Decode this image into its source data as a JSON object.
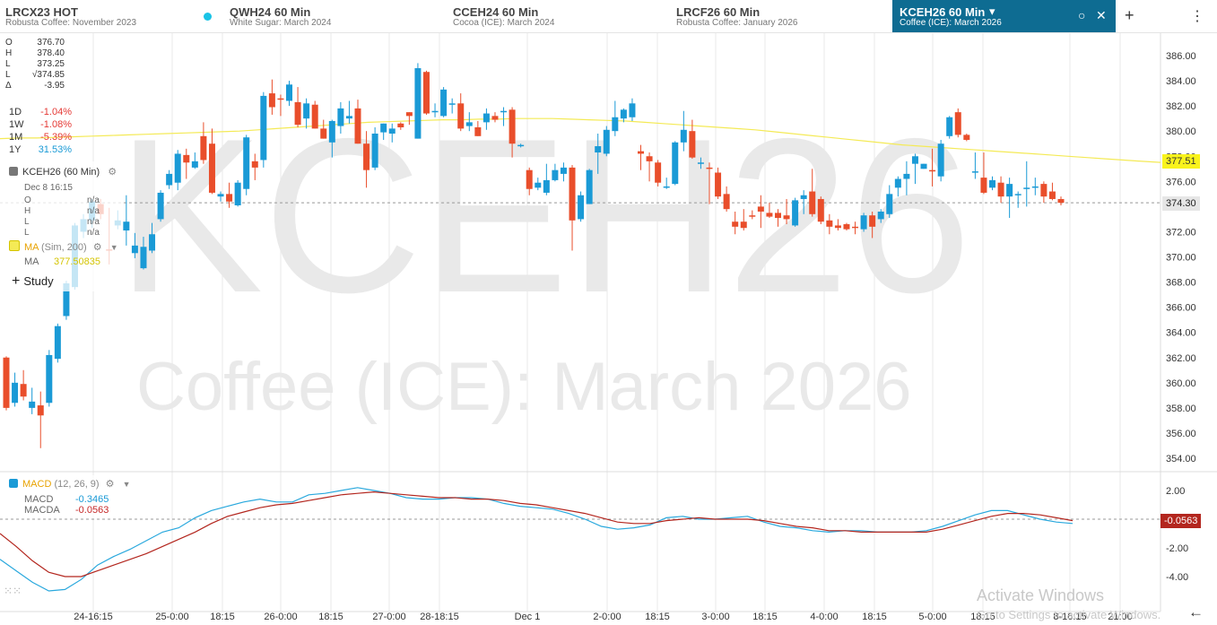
{
  "tabs": [
    {
      "symbol": "LRCX23 HOT",
      "name": "Robusta Coffee: November 2023"
    },
    {
      "symbol": "QWH24 60 Min",
      "name": "White Sugar: March 2024"
    },
    {
      "symbol": "CCEH24 60 Min",
      "name": "Cocoa (ICE): March 2024"
    },
    {
      "symbol": "LRCF26 60 Min",
      "name": "Robusta Coffee: January 2026"
    },
    {
      "symbol": "KCEH26 60 Min",
      "name": "Coffee (ICE): March 2026"
    }
  ],
  "tab_icons": {
    "dropdown": "▾",
    "radio": "○",
    "close": "✕",
    "add": "+",
    "menu": "⋮"
  },
  "watermark": {
    "symbol": "KCEH26",
    "name": "Coffee (ICE): March 2026"
  },
  "ohlc_panel": [
    {
      "k": "O",
      "v": "376.70"
    },
    {
      "k": "H",
      "v": "378.40"
    },
    {
      "k": "L",
      "v": "373.25"
    },
    {
      "k": "L",
      "v": "√374.85"
    },
    {
      "k": "Δ",
      "v": "-3.95"
    }
  ],
  "performance": [
    {
      "k": "1D",
      "v": "-1.04%",
      "color": "#e53935"
    },
    {
      "k": "1W",
      "v": "-1.08%",
      "color": "#e53935"
    },
    {
      "k": "1M",
      "v": "-5.39%",
      "color": "#e53935"
    },
    {
      "k": "1Y",
      "v": "31.53%",
      "color": "#1a9ad6"
    }
  ],
  "legend": {
    "symbol_label": "KCEH26 (60 Min)",
    "cursor_date": "Dec 8 16:15",
    "cursor_rows": [
      {
        "k": "O",
        "v": "n/a"
      },
      {
        "k": "H",
        "v": "n/a"
      },
      {
        "k": "L",
        "v": "n/a"
      },
      {
        "k": "L",
        "v": "n/a"
      }
    ],
    "ma_label": "MA",
    "ma_params": "(Sim, 200)",
    "ma_key": "MA",
    "ma_value": "377.50835",
    "add_study": "Study",
    "macd_label": "MACD",
    "macd_params": "(12, 26, 9)",
    "macd_rows": [
      {
        "k": "MACD",
        "v": "-0.3465",
        "color": "#1a9ad6"
      },
      {
        "k": "MACDA",
        "v": "-0.0563",
        "color": "#c62828"
      }
    ]
  },
  "price_tags": {
    "ma": "377.51",
    "last": "374.30",
    "macd": "-0.0563"
  },
  "colors": {
    "up": "#1a9ad6",
    "down": "#e94e2b",
    "ma": "#f4ea56",
    "macd": "#29a8dd",
    "signal": "#b3261e",
    "accent": "#0e6c92"
  },
  "system_watermark": {
    "line1": "Activate Windows",
    "line2": "Go to Settings to activate Windows."
  },
  "chart_data": [
    {
      "type": "candlestick",
      "title": "KCEH26 (60 Min)",
      "ylim": [
        353,
        387.5
      ],
      "yticks": [
        "354.00",
        "356.00",
        "358.00",
        "360.00",
        "362.00",
        "364.00",
        "366.00",
        "368.00",
        "370.00",
        "372.00",
        "374.00",
        "376.00",
        "378.00",
        "380.00",
        "382.00",
        "384.00",
        "386.00"
      ],
      "xticks": [
        "24-16:15",
        "25-0:00",
        "18:15",
        "26-0:00",
        "18:15",
        "27-0:00",
        "28-18:15",
        "Dec 1",
        "2-0:00",
        "18:15",
        "3-0:00",
        "18:15",
        "4-0:00",
        "18:15",
        "5-0:00",
        "18:15",
        "8-16:15",
        "21:00"
      ],
      "candles": [
        [
          362.0,
          362.1,
          357.8,
          358.0
        ],
        [
          358.4,
          360.8,
          358.1,
          360.0
        ],
        [
          359.9,
          361.0,
          358.6,
          358.9
        ],
        [
          358.0,
          359.6,
          357.5,
          358.5
        ],
        [
          358.2,
          359.3,
          354.8,
          357.4
        ],
        [
          358.4,
          362.6,
          358.1,
          362.2
        ],
        [
          361.9,
          364.7,
          361.6,
          364.5
        ],
        [
          365.3,
          368.1,
          365.0,
          367.9
        ],
        [
          367.6,
          372.7,
          367.4,
          372.5
        ],
        [
          372.0,
          373.4,
          371.5,
          373.0
        ],
        [
          372.9,
          374.6,
          372.3,
          374.4
        ],
        [
          374.2,
          374.6,
          373.0,
          373.4
        ],
        [
          370.6,
          373.9,
          369.4,
          370.5
        ],
        [
          372.5,
          373.7,
          372.2,
          372.9
        ],
        [
          372.1,
          374.9,
          370.9,
          372.8
        ],
        [
          370.3,
          371.9,
          369.9,
          370.9
        ],
        [
          369.1,
          371.6,
          369.0,
          370.8
        ],
        [
          370.5,
          372.7,
          370.3,
          371.8
        ],
        [
          373.0,
          375.3,
          372.8,
          375.1
        ],
        [
          375.7,
          376.9,
          375.4,
          376.6
        ],
        [
          375.9,
          378.5,
          375.3,
          378.2
        ],
        [
          378.1,
          378.6,
          376.2,
          377.5
        ],
        [
          377.1,
          378.3,
          377.0,
          377.6
        ],
        [
          379.6,
          380.7,
          377.4,
          377.7
        ],
        [
          379.0,
          380.2,
          375.0,
          375.1
        ],
        [
          374.8,
          375.2,
          374.4,
          375.0
        ],
        [
          375.0,
          375.9,
          373.9,
          374.4
        ],
        [
          374.1,
          376.1,
          374.0,
          375.9
        ],
        [
          375.4,
          379.7,
          374.9,
          379.5
        ],
        [
          377.6,
          378.2,
          376.1,
          377.1
        ],
        [
          377.7,
          383.1,
          377.1,
          382.8
        ],
        [
          383.0,
          384.1,
          381.3,
          381.9
        ],
        [
          382.6,
          382.9,
          381.2,
          382.5
        ],
        [
          382.4,
          384.0,
          382.0,
          383.7
        ],
        [
          382.3,
          383.5,
          380.3,
          380.5
        ],
        [
          381.0,
          382.6,
          380.2,
          382.2
        ],
        [
          382.1,
          382.4,
          380.2,
          380.2
        ],
        [
          380.2,
          380.9,
          379.4,
          379.4
        ],
        [
          379.1,
          380.9,
          377.9,
          380.8
        ],
        [
          380.4,
          382.3,
          379.8,
          381.8
        ],
        [
          381.0,
          382.4,
          380.6,
          381.2
        ],
        [
          381.8,
          382.5,
          379.0,
          379.0
        ],
        [
          379.0,
          380.0,
          375.5,
          376.9
        ],
        [
          377.1,
          380.3,
          376.9,
          379.8
        ],
        [
          379.9,
          380.6,
          379.3,
          380.6
        ],
        [
          379.8,
          380.6,
          379.1,
          380.2
        ],
        [
          380.6,
          380.7,
          380.1,
          380.3
        ],
        [
          381.5,
          381.5,
          380.5,
          381.2
        ],
        [
          379.4,
          385.4,
          379.4,
          385.0
        ],
        [
          384.7,
          384.8,
          381.3,
          381.4
        ],
        [
          381.6,
          382.2,
          381.1,
          381.6
        ],
        [
          381.2,
          383.5,
          381.1,
          383.3
        ],
        [
          382.2,
          382.6,
          381.4,
          382.2
        ],
        [
          382.2,
          383.0,
          380.0,
          380.2
        ],
        [
          380.4,
          381.5,
          380.0,
          380.7
        ],
        [
          380.3,
          380.8,
          379.6,
          379.6
        ],
        [
          380.7,
          381.8,
          380.1,
          381.4
        ],
        [
          381.2,
          381.5,
          380.7,
          380.9
        ],
        [
          381.5,
          381.9,
          380.4,
          381.6
        ],
        [
          381.7,
          381.9,
          377.9,
          379.0
        ],
        [
          378.9,
          379.0,
          378.7,
          378.9
        ],
        [
          376.9,
          377.1,
          374.9,
          375.4
        ],
        [
          375.5,
          376.3,
          375.3,
          375.9
        ],
        [
          375.1,
          377.4,
          374.9,
          376.1
        ],
        [
          376.1,
          377.4,
          376.0,
          376.9
        ],
        [
          376.6,
          377.5,
          376.0,
          377.1
        ],
        [
          377.1,
          377.3,
          370.5,
          372.9
        ],
        [
          373.0,
          375.2,
          372.8,
          374.9
        ],
        [
          374.2,
          377.0,
          374.2,
          376.9
        ],
        [
          378.3,
          379.8,
          376.6,
          378.8
        ],
        [
          378.2,
          380.4,
          378.0,
          380.1
        ],
        [
          380.0,
          382.4,
          379.6,
          381.1
        ],
        [
          381.0,
          381.8,
          380.7,
          381.7
        ],
        [
          381.1,
          382.6,
          380.8,
          382.2
        ],
        [
          378.4,
          378.9,
          376.9,
          378.2
        ],
        [
          378.0,
          378.3,
          376.0,
          377.6
        ],
        [
          377.5,
          377.7,
          375.6,
          375.9
        ],
        [
          375.5,
          376.3,
          375.4,
          375.6
        ],
        [
          375.8,
          379.2,
          375.7,
          379.1
        ],
        [
          379.1,
          381.6,
          378.4,
          380.1
        ],
        [
          380.0,
          380.9,
          377.8,
          377.9
        ],
        [
          377.5,
          377.9,
          377.0,
          377.5
        ],
        [
          377.1,
          377.5,
          374.2,
          377.0
        ],
        [
          376.7,
          377.1,
          374.6,
          374.8
        ],
        [
          375.0,
          375.6,
          373.6,
          373.8
        ],
        [
          372.8,
          373.6,
          371.8,
          372.4
        ],
        [
          372.8,
          373.8,
          372.1,
          372.3
        ],
        [
          373.3,
          373.7,
          373.0,
          373.2
        ],
        [
          374.0,
          374.9,
          372.3,
          373.6
        ],
        [
          373.5,
          374.3,
          373.1,
          373.2
        ],
        [
          373.5,
          373.8,
          372.4,
          373.1
        ],
        [
          373.3,
          374.6,
          372.6,
          373.0
        ],
        [
          372.5,
          374.7,
          372.4,
          374.5
        ],
        [
          374.6,
          375.3,
          373.4,
          374.9
        ],
        [
          375.2,
          377.0,
          373.2,
          373.4
        ],
        [
          374.6,
          374.8,
          372.6,
          372.8
        ],
        [
          372.9,
          373.4,
          371.8,
          372.4
        ],
        [
          372.5,
          373.0,
          372.1,
          372.3
        ],
        [
          372.6,
          372.7,
          372.1,
          372.2
        ],
        [
          372.4,
          372.8,
          371.8,
          372.3
        ],
        [
          372.2,
          373.5,
          372.0,
          373.3
        ],
        [
          373.3,
          373.6,
          371.5,
          372.4
        ],
        [
          373.0,
          373.8,
          372.7,
          373.6
        ],
        [
          373.4,
          375.7,
          373.1,
          375.0
        ],
        [
          375.5,
          376.4,
          374.8,
          376.2
        ],
        [
          376.2,
          377.6,
          374.9,
          376.6
        ],
        [
          377.4,
          378.2,
          375.8,
          378.0
        ],
        [
          377.0,
          377.4,
          377.0,
          377.4
        ],
        [
          376.9,
          378.6,
          375.6,
          376.8
        ],
        [
          376.4,
          379.3,
          376.0,
          379.0
        ],
        [
          379.6,
          381.2,
          379.4,
          381.1
        ],
        [
          381.5,
          381.8,
          379.5,
          379.7
        ],
        [
          379.7,
          379.8,
          379.2,
          379.3
        ],
        [
          376.8,
          378.3,
          376.2,
          376.8
        ],
        [
          376.3,
          378.3,
          375.0,
          375.1
        ],
        [
          375.5,
          376.4,
          375.3,
          376.1
        ],
        [
          375.9,
          376.4,
          374.3,
          374.8
        ],
        [
          374.8,
          376.3,
          373.1,
          375.8
        ],
        [
          375.0,
          375.2,
          373.9,
          375.0
        ],
        [
          375.5,
          377.6,
          374.0,
          375.5
        ],
        [
          375.6,
          376.3,
          374.9,
          375.6
        ],
        [
          375.8,
          376.0,
          374.3,
          374.8
        ],
        [
          375.2,
          375.9,
          374.5,
          374.6
        ],
        [
          374.6,
          374.8,
          374.1,
          374.3
        ]
      ],
      "ma_line": [
        379.4,
        379.45,
        379.45,
        379.5,
        379.55,
        379.6,
        379.65,
        379.7,
        379.75,
        379.8,
        379.85,
        379.9,
        379.95,
        380.0,
        380.1,
        380.2,
        380.3,
        380.4,
        380.5,
        380.6,
        380.7,
        380.75,
        380.8,
        380.85,
        380.9,
        380.9,
        380.95,
        380.95,
        381.0,
        381.0,
        381.0,
        380.95,
        380.9,
        380.85,
        380.8,
        380.7,
        380.6,
        380.5,
        380.4,
        380.3,
        380.2,
        380.1,
        379.95,
        379.8,
        379.65,
        379.5,
        379.35,
        379.2,
        379.05,
        378.9,
        378.8,
        378.7,
        378.6,
        378.5,
        378.4,
        378.3,
        378.2,
        378.1,
        378.0,
        377.9,
        377.8,
        377.7,
        377.6,
        377.51
      ],
      "ma_name": "MA",
      "last_price": 374.3
    },
    {
      "type": "line",
      "title": "MACD (12, 26, 9)",
      "ylim": [
        -5.5,
        3.0
      ],
      "yticks": [
        "2.00",
        "-2.00",
        "-4.00"
      ],
      "series": [
        {
          "name": "MACD",
          "values": [
            -2.8,
            -3.6,
            -4.4,
            -5.0,
            -4.9,
            -4.2,
            -3.2,
            -2.6,
            -2.1,
            -1.5,
            -0.9,
            -0.6,
            0.1,
            0.6,
            0.9,
            1.2,
            1.4,
            1.2,
            1.2,
            1.7,
            1.8,
            2.0,
            2.2,
            2.0,
            1.8,
            1.5,
            1.4,
            1.4,
            1.5,
            1.5,
            1.4,
            1.1,
            0.9,
            0.8,
            0.7,
            0.4,
            0.0,
            -0.5,
            -0.7,
            -0.6,
            -0.4,
            0.1,
            0.2,
            0.0,
            0.0,
            0.1,
            0.2,
            -0.2,
            -0.5,
            -0.6,
            -0.8,
            -0.9,
            -0.8,
            -0.8,
            -0.9,
            -0.9,
            -0.9,
            -0.8,
            -0.5,
            -0.1,
            0.3,
            0.6,
            0.6,
            0.3,
            0.0,
            -0.2,
            -0.3
          ]
        },
        {
          "name": "MACDA",
          "values": [
            -1.0,
            -1.9,
            -2.9,
            -3.7,
            -4.0,
            -4.0,
            -3.6,
            -3.2,
            -2.8,
            -2.4,
            -1.9,
            -1.4,
            -0.9,
            -0.3,
            0.2,
            0.5,
            0.8,
            1.0,
            1.1,
            1.3,
            1.5,
            1.7,
            1.8,
            1.9,
            1.8,
            1.7,
            1.6,
            1.5,
            1.5,
            1.4,
            1.4,
            1.3,
            1.1,
            1.0,
            0.8,
            0.6,
            0.4,
            0.1,
            -0.2,
            -0.3,
            -0.3,
            -0.1,
            0.0,
            0.1,
            0.0,
            0.0,
            0.0,
            -0.1,
            -0.3,
            -0.5,
            -0.6,
            -0.8,
            -0.8,
            -0.9,
            -0.9,
            -0.9,
            -0.9,
            -0.9,
            -0.7,
            -0.4,
            -0.1,
            0.2,
            0.4,
            0.4,
            0.3,
            0.1,
            -0.1
          ]
        }
      ]
    }
  ]
}
